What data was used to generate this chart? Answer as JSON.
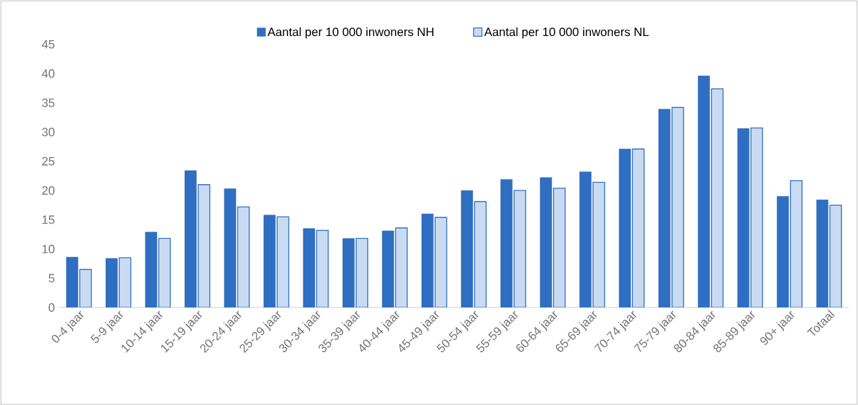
{
  "chart_data": {
    "type": "bar",
    "categories": [
      "0-4 jaar",
      "5-9 jaar",
      "10-14 jaar",
      "15-19 jaar",
      "20-24 jaar",
      "25-29 jaar",
      "30-34 jaar",
      "35-39 jaar",
      "40-44 jaar",
      "45-49 jaar",
      "50-54 jaar",
      "55-59 jaar",
      "60-64 jaar",
      "65-69 jaar",
      "70-74 jaar",
      "75-79 jaar",
      "80-84 jaar",
      "85-89 jaar",
      "90+ jaar",
      "Totaal"
    ],
    "series": [
      {
        "name": "Aantal per 10 000 inwoners NH",
        "color": "#2e6fc4",
        "values": [
          8.6,
          8.4,
          12.9,
          23.4,
          20.3,
          15.8,
          13.5,
          11.8,
          13.1,
          16.0,
          20.0,
          21.9,
          22.2,
          23.2,
          27.1,
          33.9,
          39.6,
          30.6,
          19.0,
          18.4
        ]
      },
      {
        "name": "Aantal per 10 000 inwoners NL",
        "color": "#c9dbf2",
        "values": [
          6.5,
          8.5,
          11.8,
          21.0,
          17.2,
          15.5,
          13.2,
          11.8,
          13.6,
          15.4,
          18.1,
          20.0,
          20.4,
          21.4,
          27.1,
          34.2,
          37.4,
          30.7,
          21.7,
          17.5
        ]
      }
    ],
    "ylim": [
      0,
      45
    ],
    "yticks": [
      0,
      5,
      10,
      15,
      20,
      25,
      30,
      35,
      40,
      45
    ],
    "grid": false,
    "legend": "top"
  }
}
